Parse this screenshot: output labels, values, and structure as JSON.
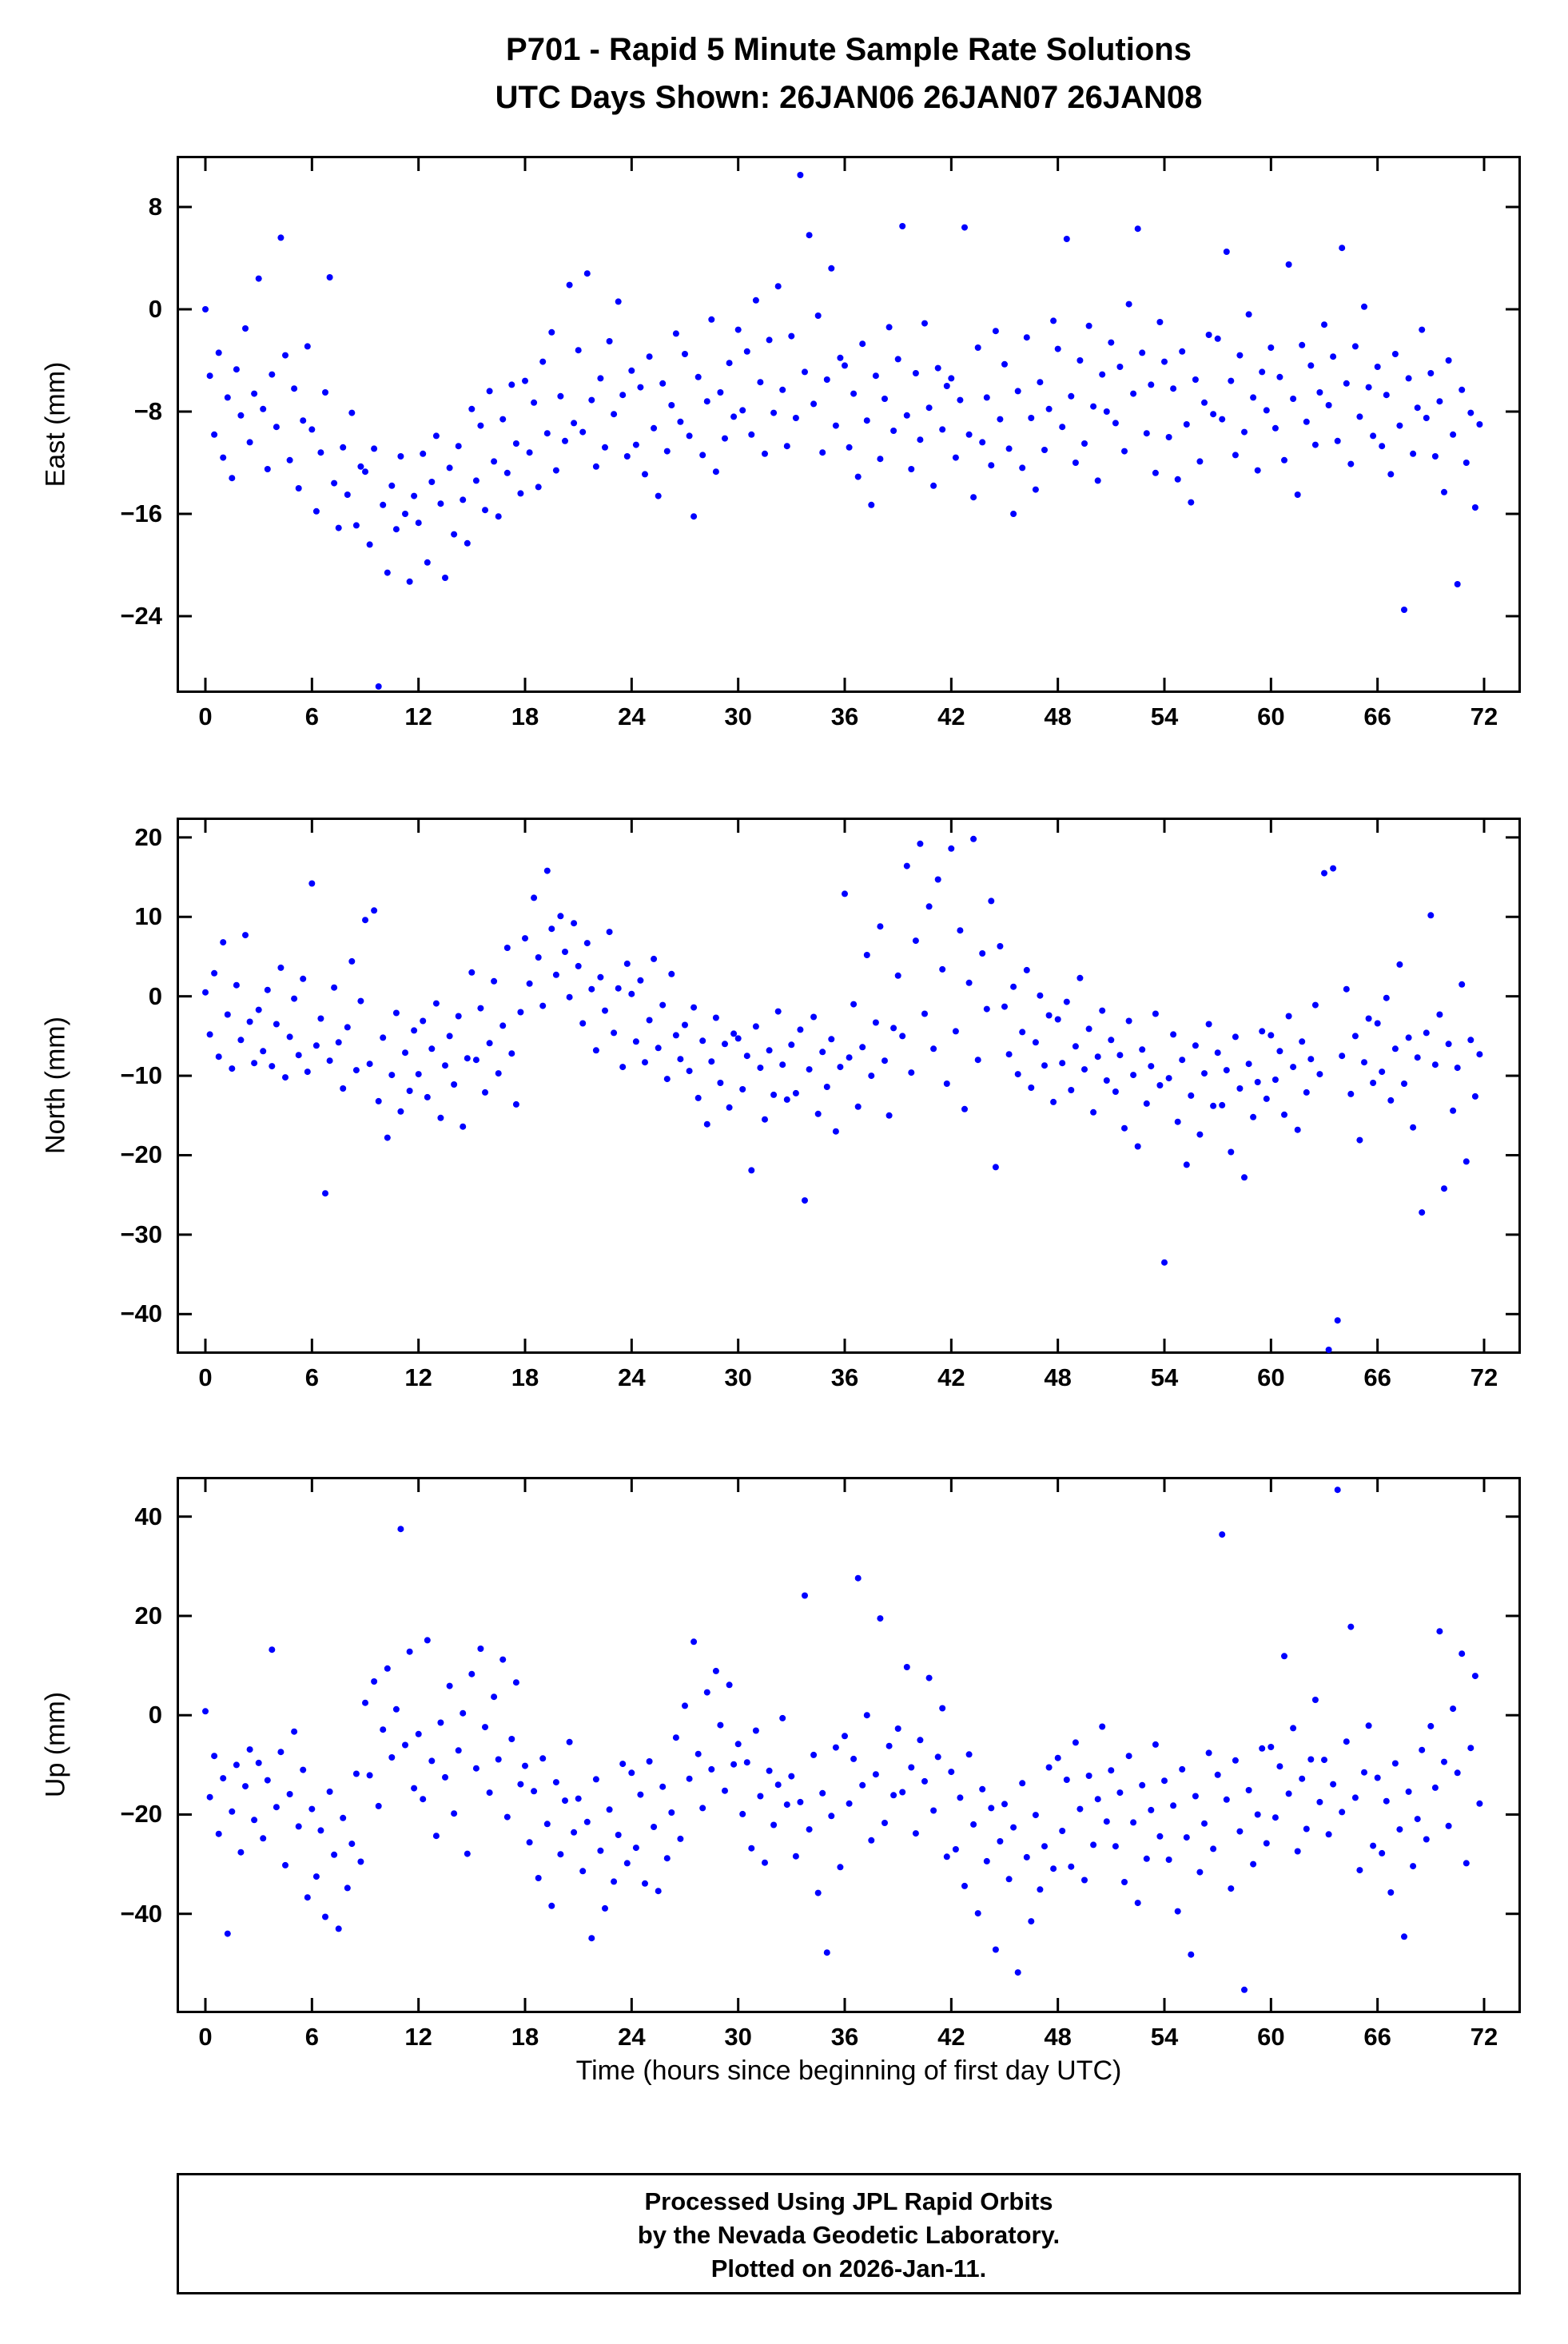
{
  "title": {
    "line1": "P701 - Rapid 5 Minute Sample Rate Solutions",
    "line2": "UTC Days Shown:  26JAN06 26JAN07 26JAN08"
  },
  "xlabel": "Time (hours since beginning of first day UTC)",
  "footer": {
    "line1": "Processed Using JPL Rapid Orbits",
    "line2": "by the Nevada Geodetic Laboratory.",
    "line3": "Plotted on 2026-Jan-11."
  },
  "point_color": "#0000ff",
  "chart_data": [
    {
      "type": "scatter",
      "name": "east",
      "ylabel": "East (mm)",
      "ylim": [
        -30,
        12
      ],
      "yticks": [
        8,
        0,
        -8,
        -16,
        -24
      ],
      "xlim": [
        0,
        72
      ],
      "xticks": [
        0,
        6,
        12,
        18,
        24,
        30,
        36,
        42,
        48,
        54,
        60,
        66,
        72
      ],
      "x_start": 0,
      "x_step": 0.25,
      "y": [
        0.0,
        -5.2,
        -9.8,
        -3.4,
        -11.6,
        -6.9,
        -13.2,
        -4.7,
        -8.3,
        -1.5,
        -10.4,
        -6.6,
        2.4,
        -7.8,
        -12.5,
        -5.1,
        -9.2,
        5.6,
        -3.6,
        -11.8,
        -6.2,
        -14.0,
        -8.7,
        -2.9,
        -9.4,
        -15.8,
        -11.2,
        -6.5,
        2.5,
        -13.6,
        -17.1,
        -10.8,
        -14.5,
        -8.1,
        -16.9,
        -12.3,
        -12.7,
        -18.4,
        -10.9,
        -29.5,
        -15.3,
        -20.6,
        -13.8,
        -17.2,
        -11.5,
        -16.0,
        -21.3,
        -14.6,
        -16.7,
        -11.3,
        -19.8,
        -13.5,
        -9.9,
        -15.2,
        -21.0,
        -12.4,
        -17.6,
        -10.7,
        -14.9,
        -18.3,
        -7.8,
        -13.4,
        -9.1,
        -15.7,
        -6.4,
        -11.9,
        -16.2,
        -8.6,
        -12.8,
        -5.9,
        -10.5,
        -14.4,
        -5.6,
        -11.2,
        -7.3,
        -13.9,
        -4.1,
        -9.7,
        -1.8,
        -12.6,
        -6.8,
        -10.3,
        1.9,
        -8.9,
        -3.2,
        -9.6,
        2.8,
        -7.1,
        -12.3,
        -5.4,
        -10.8,
        -2.5,
        -8.2,
        0.6,
        -6.7,
        -11.5,
        -4.8,
        -10.6,
        -6.1,
        -12.9,
        -3.7,
        -9.3,
        -14.6,
        -5.8,
        -11.1,
        -7.5,
        -1.9,
        -8.8,
        -3.5,
        -9.9,
        -16.2,
        -5.3,
        -11.4,
        -7.2,
        -0.8,
        -12.7,
        -6.5,
        -10.1,
        -4.2,
        -8.4,
        -1.6,
        -7.9,
        -3.3,
        -9.8,
        0.7,
        -5.7,
        -11.3,
        -2.4,
        -8.1,
        1.8,
        -6.3,
        -10.7,
        -2.1,
        -8.5,
        10.5,
        -4.9,
        5.8,
        -7.4,
        -0.5,
        -11.2,
        -5.5,
        3.2,
        -9.1,
        -3.8,
        -4.4,
        -10.8,
        -6.6,
        -13.1,
        -2.7,
        -8.7,
        -15.3,
        -5.2,
        -11.7,
        -7.0,
        -1.4,
        -9.5,
        -3.9,
        6.5,
        -8.3,
        -12.5,
        -5.0,
        -10.2,
        -1.1,
        -7.7,
        -13.8,
        -4.6,
        -9.4,
        -6.0,
        -5.4,
        -11.6,
        -7.1,
        6.4,
        -9.8,
        -14.7,
        -3.0,
        -10.4,
        -6.9,
        -12.2,
        -1.7,
        -8.6,
        -4.3,
        -10.9,
        -16.0,
        -6.4,
        -12.4,
        -2.2,
        -8.5,
        -14.1,
        -5.7,
        -11.0,
        -7.8,
        -0.9,
        -3.1,
        -9.2,
        5.5,
        -6.8,
        -12.0,
        -4.0,
        -10.5,
        -1.3,
        -7.6,
        -13.4,
        -5.1,
        -8.0,
        -2.6,
        -8.9,
        -4.5,
        -11.1,
        0.4,
        -6.6,
        6.3,
        -3.4,
        -9.7,
        -5.9,
        -12.8,
        -1.0,
        -4.1,
        -10.0,
        -6.2,
        -13.3,
        -3.3,
        -9.0,
        -15.1,
        -5.5,
        -11.9,
        -7.3,
        -2.0,
        -8.2,
        -2.3,
        -8.6,
        4.5,
        -5.6,
        -11.4,
        -3.6,
        -9.6,
        -0.4,
        -6.9,
        -12.6,
        -4.9,
        -7.9,
        -3.0,
        -9.3,
        -5.3,
        -11.8,
        3.5,
        -7.0,
        -14.5,
        -2.8,
        -8.8,
        -4.4,
        -10.6,
        -6.5,
        -1.2,
        -7.5,
        -3.7,
        -10.3,
        4.8,
        -5.8,
        -12.1,
        -2.9,
        -8.4,
        0.2,
        -6.1,
        -9.9,
        -4.5,
        -10.7,
        -6.7,
        -12.9,
        -3.5,
        -9.1,
        -23.5,
        -5.4,
        -11.3,
        -7.7,
        -1.6,
        -8.5,
        -5.0,
        -11.5,
        -7.2,
        -14.3,
        -4.0,
        -9.8,
        -21.5,
        -6.3,
        -12.0,
        -8.1,
        -15.5,
        -9.0
      ]
    },
    {
      "type": "scatter",
      "name": "north",
      "ylabel": "North (mm)",
      "ylim": [
        -45,
        22.5
      ],
      "yticks": [
        20,
        10,
        0,
        -10,
        -20,
        -30,
        -40
      ],
      "xlim": [
        0,
        72
      ],
      "xticks": [
        0,
        6,
        12,
        18,
        24,
        30,
        36,
        42,
        48,
        54,
        60,
        66,
        72
      ],
      "x_start": 0,
      "x_step": 0.25,
      "y": [
        0.5,
        -4.8,
        2.9,
        -7.6,
        6.8,
        -2.3,
        -9.1,
        1.4,
        -5.5,
        7.7,
        -3.2,
        -8.4,
        -1.7,
        -6.9,
        0.8,
        -8.8,
        -3.5,
        3.6,
        -10.2,
        -5.1,
        -0.3,
        -7.4,
        2.2,
        -9.5,
        14.2,
        -6.2,
        -2.8,
        -24.8,
        -8.1,
        1.1,
        -5.8,
        -11.6,
        -3.9,
        4.4,
        -9.3,
        -0.6,
        9.6,
        -8.5,
        10.8,
        -13.2,
        -5.2,
        -17.8,
        -9.9,
        -2.1,
        -14.5,
        -7.1,
        -11.9,
        -4.3,
        -9.8,
        -3.1,
        -12.7,
        -6.6,
        -0.9,
        -15.3,
        -8.7,
        -5.0,
        -11.1,
        -2.5,
        -16.4,
        -7.8,
        3.0,
        -8.0,
        -1.5,
        -12.1,
        -5.9,
        1.9,
        -9.7,
        -3.7,
        6.1,
        -7.2,
        -13.6,
        -2.0,
        7.3,
        1.6,
        12.4,
        4.9,
        -1.2,
        15.8,
        8.5,
        2.7,
        10.1,
        5.6,
        -0.1,
        9.2,
        3.8,
        -3.4,
        6.7,
        0.9,
        -6.8,
        2.4,
        -1.8,
        8.1,
        -4.6,
        1.0,
        -8.9,
        4.1,
        0.3,
        -5.7,
        2.0,
        -8.3,
        -3.0,
        4.7,
        -6.5,
        -1.1,
        -10.4,
        2.8,
        -4.9,
        -7.9,
        -3.6,
        -9.4,
        -1.4,
        -12.8,
        -5.6,
        -16.1,
        -8.2,
        -2.7,
        -10.9,
        -6.0,
        -14.0,
        -4.7,
        -5.3,
        -11.7,
        -7.5,
        -21.9,
        -3.8,
        -9.0,
        -15.5,
        -6.8,
        -12.4,
        -1.9,
        -8.6,
        -13.0,
        -6.1,
        -12.2,
        -4.2,
        -25.7,
        -9.2,
        -2.6,
        -14.8,
        -7.0,
        -11.4,
        -5.4,
        -17.0,
        -8.9,
        12.9,
        -7.7,
        -1.0,
        -13.9,
        -6.4,
        5.2,
        -10.0,
        -3.3,
        8.8,
        -8.1,
        -15.0,
        -4.0,
        2.6,
        -5.0,
        16.4,
        -9.6,
        7.0,
        19.2,
        -2.2,
        11.3,
        -6.6,
        14.7,
        3.4,
        -11.0,
        18.6,
        -4.4,
        8.3,
        -14.2,
        1.7,
        19.8,
        -8.0,
        5.4,
        -1.6,
        12.0,
        -21.5,
        6.3,
        -1.3,
        -7.3,
        1.2,
        -9.8,
        -4.5,
        3.3,
        -11.5,
        -5.8,
        0.1,
        -8.7,
        -2.4,
        -13.3,
        -2.9,
        -8.4,
        -0.7,
        -11.8,
        -6.3,
        2.3,
        -9.2,
        -4.1,
        -14.6,
        -7.6,
        -1.8,
        -10.6,
        -5.5,
        -12.0,
        -7.4,
        -16.6,
        -3.1,
        -9.9,
        -18.9,
        -6.7,
        -13.5,
        -8.8,
        -2.2,
        -11.2,
        -33.5,
        -10.3,
        -4.8,
        -15.8,
        -8.0,
        -21.2,
        -12.5,
        -6.2,
        -17.4,
        -9.7,
        -3.5,
        -13.8,
        -7.1,
        -13.7,
        -9.3,
        -19.6,
        -5.1,
        -11.6,
        -22.8,
        -8.5,
        -15.2,
        -10.8,
        -4.4,
        -12.9,
        -4.9,
        -10.5,
        -6.9,
        -14.9,
        -2.5,
        -8.9,
        -16.8,
        -5.7,
        -12.1,
        -7.9,
        -1.1,
        -9.8,
        15.5,
        -44.5,
        16.1,
        -40.8,
        -7.5,
        0.9,
        -12.3,
        -5.0,
        -18.1,
        -8.3,
        -2.8,
        -10.9,
        -3.4,
        -9.5,
        -0.2,
        -13.1,
        -6.6,
        4.0,
        -11.0,
        -5.2,
        -16.5,
        -7.7,
        -27.2,
        -4.6,
        10.2,
        -8.6,
        -2.3,
        -24.2,
        -6.0,
        -14.4,
        -9.0,
        1.5,
        -20.8,
        -5.5,
        -12.6,
        -7.3
      ]
    },
    {
      "type": "scatter",
      "name": "up",
      "ylabel": "Up (mm)",
      "ylim": [
        -60,
        48
      ],
      "yticks": [
        40,
        20,
        0,
        -20,
        -40
      ],
      "xlim": [
        0,
        72
      ],
      "xticks": [
        0,
        6,
        12,
        18,
        24,
        30,
        36,
        42,
        48,
        54,
        60,
        66,
        72
      ],
      "x_start": 0,
      "x_step": 0.25,
      "y": [
        0.8,
        -16.5,
        -8.2,
        -23.9,
        -12.7,
        -44.0,
        -19.4,
        -10.0,
        -27.6,
        -14.3,
        -6.9,
        -21.1,
        -9.6,
        -24.8,
        -13.1,
        13.2,
        -18.5,
        -7.4,
        -30.2,
        -15.9,
        -3.3,
        -22.4,
        -11.0,
        -36.7,
        -18.9,
        -32.5,
        -23.2,
        -40.6,
        -15.4,
        -28.1,
        -43.0,
        -20.7,
        -34.8,
        -25.9,
        -11.8,
        -29.5,
        2.5,
        -12.1,
        6.8,
        -18.3,
        -2.9,
        9.4,
        -8.5,
        1.2,
        37.5,
        -6.0,
        12.8,
        -14.7,
        -3.8,
        -16.9,
        15.1,
        -9.2,
        -24.3,
        -1.5,
        -12.5,
        5.9,
        -19.8,
        -7.1,
        0.4,
        -27.9,
        8.3,
        -10.7,
        13.4,
        -2.4,
        -15.6,
        3.7,
        -8.9,
        11.2,
        -20.5,
        -4.8,
        6.6,
        -13.9,
        -10.2,
        -25.6,
        -15.3,
        -32.8,
        -8.7,
        -21.9,
        -38.4,
        -13.5,
        -28.0,
        -17.2,
        -5.4,
        -23.6,
        -16.8,
        -31.4,
        -21.5,
        -44.9,
        -12.9,
        -27.3,
        -38.9,
        -19.0,
        -33.5,
        -24.1,
        -9.8,
        -29.8,
        -11.6,
        -26.7,
        -16.0,
        -33.9,
        -9.3,
        -22.5,
        -35.4,
        -14.4,
        -28.8,
        -19.6,
        -4.5,
        -24.9,
        1.9,
        -12.8,
        14.8,
        -7.8,
        -18.7,
        4.6,
        -10.9,
        8.9,
        -2.0,
        -15.2,
        6.1,
        -9.9,
        -5.8,
        -19.9,
        -9.5,
        -26.8,
        -3.1,
        -16.3,
        -29.7,
        -11.2,
        -22.1,
        -14.0,
        -0.6,
        -18.0,
        -12.3,
        -28.4,
        -17.5,
        24.1,
        -23.0,
        -8.0,
        -35.8,
        -15.7,
        -47.8,
        -20.3,
        -6.5,
        -30.6,
        -4.2,
        -17.8,
        -8.8,
        27.6,
        -14.1,
        0.0,
        -25.2,
        -11.9,
        19.5,
        -21.7,
        -6.2,
        -16.1,
        -2.7,
        -15.5,
        9.7,
        -10.5,
        -23.8,
        -5.0,
        -13.3,
        7.5,
        -19.2,
        -8.4,
        1.4,
        -28.5,
        -11.4,
        -27.0,
        -16.6,
        -34.4,
        -7.9,
        -22.0,
        -39.9,
        -14.9,
        -29.4,
        -18.7,
        -47.2,
        -25.4,
        -17.9,
        -33.0,
        -22.6,
        -51.8,
        -13.7,
        -28.6,
        -41.5,
        -20.1,
        -35.1,
        -26.4,
        -10.5,
        -30.9,
        -8.6,
        -23.3,
        -13.0,
        -30.5,
        -5.5,
        -18.9,
        -33.2,
        -12.2,
        -26.1,
        -16.9,
        -2.3,
        -21.4,
        -11.1,
        -26.4,
        -15.6,
        -33.6,
        -8.2,
        -21.6,
        -37.8,
        -14.1,
        -28.9,
        -19.1,
        -5.9,
        -24.4,
        -13.2,
        -29.1,
        -18.2,
        -39.5,
        -10.9,
        -24.6,
        -48.2,
        -16.3,
        -31.6,
        -21.8,
        -7.6,
        -26.9,
        -12.0,
        36.4,
        -17.0,
        -34.9,
        -9.1,
        -23.4,
        -55.3,
        -15.1,
        -30.0,
        -20.0,
        -6.7,
        -25.8,
        -6.4,
        -20.6,
        -10.3,
        11.9,
        -15.8,
        -2.6,
        -27.4,
        -12.8,
        -22.9,
        -8.9,
        3.1,
        -17.5,
        -9.0,
        -24.0,
        -13.9,
        45.4,
        -19.5,
        -5.3,
        17.8,
        -16.6,
        -31.2,
        -11.5,
        -2.1,
        -26.3,
        -12.6,
        -27.8,
        -17.3,
        -35.7,
        -9.7,
        -23.0,
        -44.6,
        -15.4,
        -30.4,
        -20.9,
        -7.0,
        -25.0,
        -2.2,
        -14.6,
        16.9,
        -9.4,
        -22.3,
        1.3,
        -11.6,
        12.4,
        -29.8,
        -6.6,
        7.9,
        -17.8
      ]
    }
  ]
}
